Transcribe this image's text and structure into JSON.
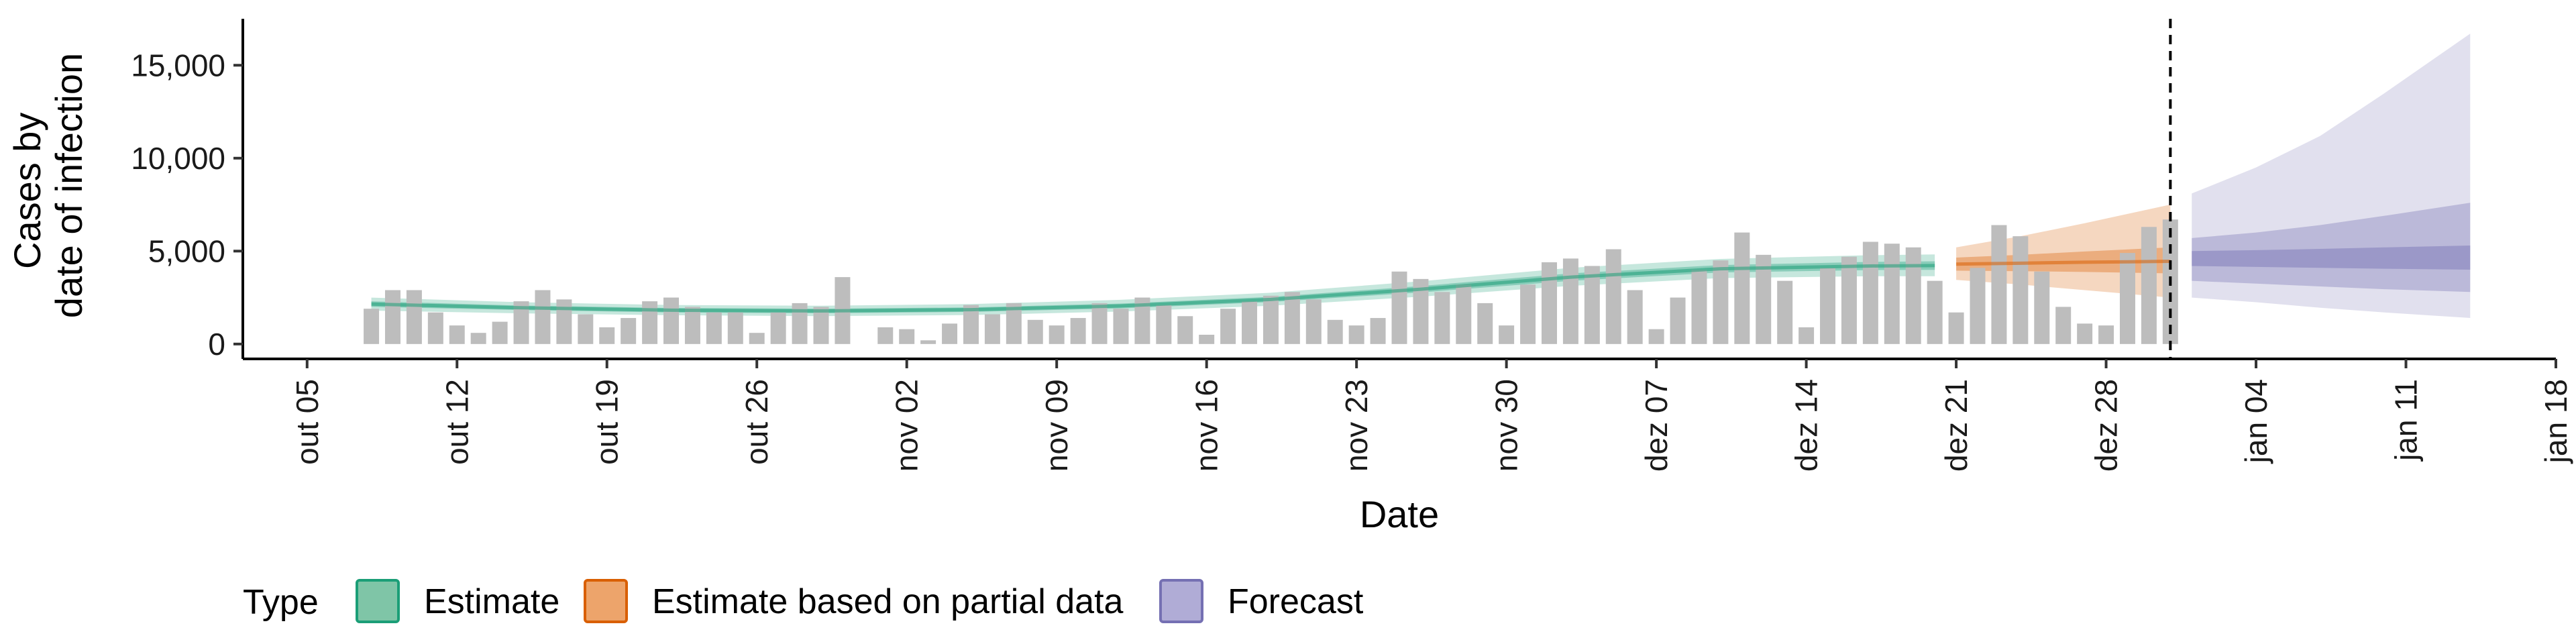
{
  "chart_data": {
    "type": "bar",
    "xlabel": "Date",
    "ylabel_lines": [
      "Cases by",
      "date of infection"
    ],
    "ylim": [
      -800,
      17500
    ],
    "y_ticks": [
      0,
      5000,
      10000,
      15000
    ],
    "y_tick_labels": [
      "0",
      "5,000",
      "10,000",
      "15,000"
    ],
    "x_range": [
      "2020-10-02",
      "2021-01-18"
    ],
    "x_ticks": [
      "2020-10-05",
      "2020-10-12",
      "2020-10-19",
      "2020-10-26",
      "2020-11-02",
      "2020-11-09",
      "2020-11-16",
      "2020-11-23",
      "2020-11-30",
      "2020-12-07",
      "2020-12-14",
      "2020-12-21",
      "2020-12-28",
      "2021-01-04",
      "2021-01-11",
      "2021-01-18"
    ],
    "x_tick_labels": [
      "out 05",
      "out 12",
      "out 19",
      "out 26",
      "nov 02",
      "nov 09",
      "nov 16",
      "nov 23",
      "nov 30",
      "dez 07",
      "dez 14",
      "dez 21",
      "dez 28",
      "jan 04",
      "jan 11",
      "jan 18"
    ],
    "forecast_date": "2020-12-31",
    "bars": {
      "start_date": "2020-10-08",
      "color": "#bdbdbd",
      "values": [
        1900,
        2900,
        2900,
        1700,
        1000,
        600,
        1200,
        2300,
        2900,
        2400,
        1600,
        900,
        1400,
        2300,
        2500,
        2000,
        1700,
        1700,
        600,
        1700,
        2200,
        2000,
        3600,
        0,
        900,
        800,
        200,
        1100,
        2100,
        1600,
        2200,
        1300,
        1000,
        1400,
        2200,
        1900,
        2500,
        2100,
        1500,
        500,
        1900,
        2300,
        2600,
        2800,
        2400,
        1300,
        1000,
        1400,
        3900,
        3500,
        2800,
        3200,
        2200,
        1000,
        3200,
        4400,
        4600,
        4200,
        5100,
        2900,
        800,
        2500,
        4000,
        4500,
        6000,
        4800,
        3400,
        900,
        4100,
        4700,
        5500,
        5400,
        5200,
        3400,
        1700,
        4100,
        6400,
        5800,
        3900,
        2000,
        1100,
        1000,
        4900,
        6300,
        6700
      ]
    },
    "series": [
      {
        "name": "Estimate",
        "color": "#1b9e77",
        "dates": [
          "2020-10-08",
          "2020-10-15",
          "2020-10-22",
          "2020-10-29",
          "2020-11-05",
          "2020-11-12",
          "2020-11-19",
          "2020-11-26",
          "2020-12-03",
          "2020-12-10",
          "2020-12-17",
          "2020-12-20"
        ],
        "median": [
          2150,
          1950,
          1820,
          1780,
          1850,
          2050,
          2400,
          2950,
          3600,
          4050,
          4200,
          4220
        ],
        "lower_50": [
          2000,
          1830,
          1700,
          1660,
          1730,
          1920,
          2260,
          2780,
          3400,
          3850,
          3980,
          3990
        ],
        "upper_50": [
          2300,
          2070,
          1940,
          1900,
          1970,
          2180,
          2540,
          3120,
          3800,
          4250,
          4420,
          4450
        ],
        "lower_90": [
          1800,
          1650,
          1550,
          1500,
          1560,
          1750,
          2060,
          2550,
          3130,
          3550,
          3650,
          3650
        ],
        "upper_90": [
          2500,
          2250,
          2100,
          2060,
          2150,
          2380,
          2760,
          3380,
          4100,
          4580,
          4780,
          4820
        ]
      },
      {
        "name": "Estimate based on partial data",
        "color": "#d95f02",
        "dates": [
          "2020-12-21",
          "2020-12-24",
          "2020-12-27",
          "2020-12-31"
        ],
        "median": [
          4300,
          4350,
          4400,
          4450
        ],
        "lower_50": [
          3950,
          3920,
          3880,
          3800
        ],
        "upper_50": [
          4650,
          4800,
          4980,
          5200
        ],
        "lower_90": [
          3450,
          3200,
          2900,
          2500
        ],
        "upper_90": [
          5200,
          5800,
          6500,
          7500
        ]
      },
      {
        "name": "Forecast",
        "color": "#7570b3",
        "dates": [
          "2021-01-01",
          "2021-01-04",
          "2021-01-07",
          "2021-01-10",
          "2021-01-14"
        ],
        "median": [
          4600,
          4600,
          4620,
          4650,
          4700
        ],
        "lower_50": [
          3950,
          3850,
          3750,
          3650,
          3550
        ],
        "upper_50": [
          5250,
          5350,
          5450,
          5550,
          5700
        ],
        "lower_20": [
          4200,
          4150,
          4100,
          4050,
          4000
        ],
        "upper_20": [
          5000,
          5050,
          5120,
          5200,
          5300
        ],
        "lower_90": [
          2500,
          2250,
          1950,
          1700,
          1400
        ],
        "upper_90": [
          8100,
          9500,
          11200,
          13500,
          16700
        ],
        "lower_50b": [
          3400,
          3250,
          3100,
          2950,
          2800
        ],
        "upper_50b": [
          5700,
          6000,
          6400,
          6900,
          7600
        ]
      }
    ],
    "legend": {
      "title": "Type",
      "position": "bottom",
      "items": [
        {
          "label": "Estimate",
          "fill": "#7fc5a7",
          "stroke": "#1b9e77"
        },
        {
          "label": "Estimate based on partial data",
          "fill": "#eda46b",
          "stroke": "#d95f02"
        },
        {
          "label": "Forecast",
          "fill": "#b0acd6",
          "stroke": "#7570b3"
        }
      ]
    },
    "grid": false
  }
}
